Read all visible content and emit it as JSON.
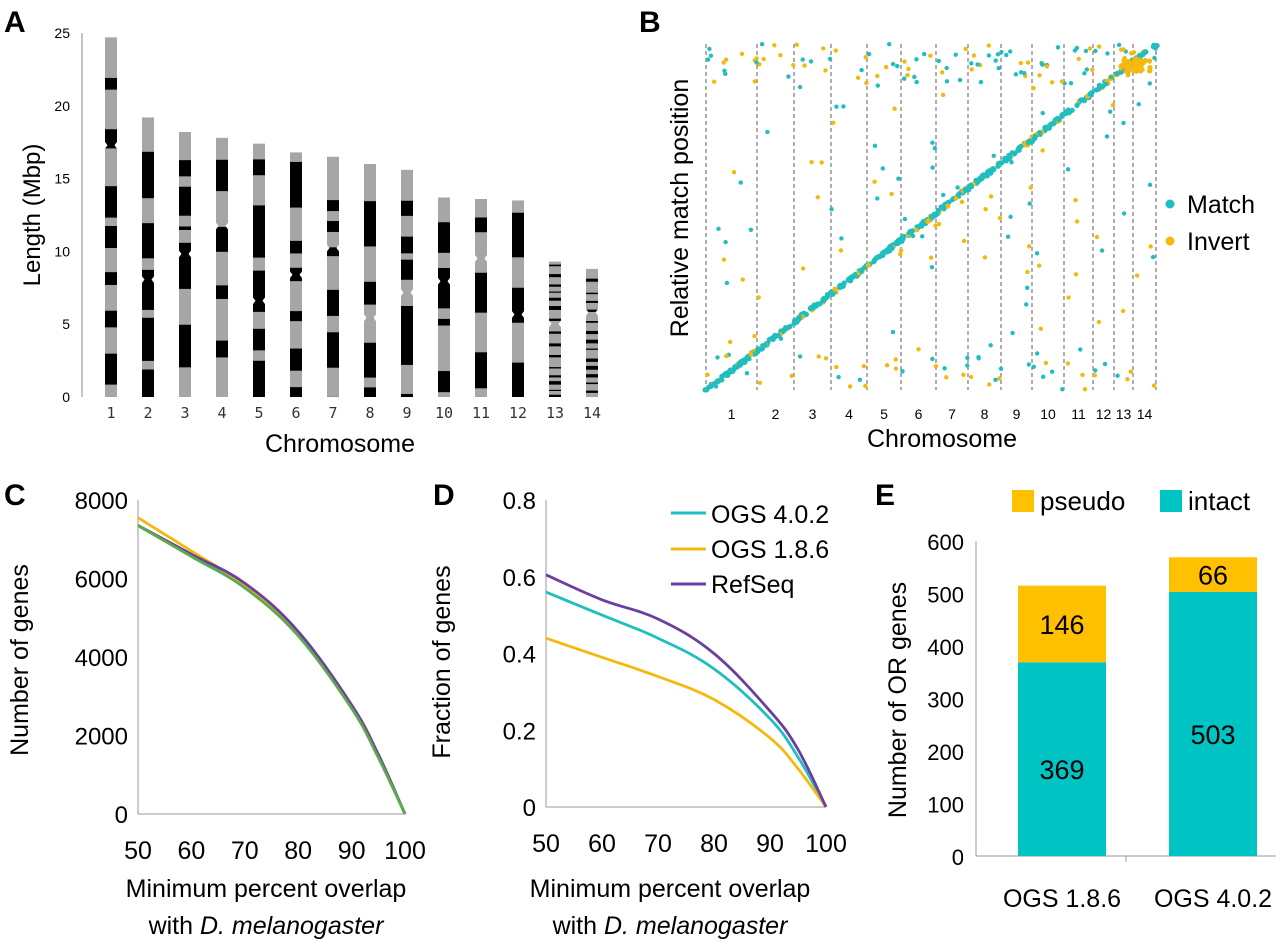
{
  "chart_data": [
    {
      "id": "A",
      "type": "bar",
      "panel_label": "A",
      "xlabel": "Chromosome",
      "ylabel": "Length (Mbp)",
      "ylim": [
        0,
        25
      ],
      "y_ticks": [
        "0",
        "5",
        "10",
        "15",
        "20",
        "25"
      ],
      "categories": [
        "1",
        "2",
        "3",
        "4",
        "5",
        "6",
        "7",
        "8",
        "9",
        "10",
        "11",
        "12",
        "13",
        "14"
      ],
      "values": [
        24.7,
        19.2,
        18.2,
        17.8,
        17.4,
        16.8,
        16.5,
        16.0,
        15.6,
        13.7,
        13.6,
        13.5,
        9.3,
        8.8
      ],
      "colors": {
        "gray": "#a6a6a6",
        "black": "#000000"
      }
    },
    {
      "id": "B",
      "type": "scatter",
      "panel_label": "B",
      "xlabel": "Chromosome",
      "ylabel": "Relative match position",
      "categories": [
        "1",
        "2",
        "3",
        "4",
        "5",
        "6",
        "7",
        "8",
        "9",
        "10",
        "11",
        "12",
        "13",
        "14"
      ],
      "series": [
        {
          "name": "Match",
          "color": "#1fbec0"
        },
        {
          "name": "Invert",
          "color": "#f5b90e"
        }
      ],
      "legend": "right"
    },
    {
      "id": "C",
      "type": "line",
      "panel_label": "C",
      "xlabel": "Minimum percent overlap",
      "xlabel_line2_prefix": "with ",
      "xlabel_line2_italic": "D. melanogaster",
      "ylabel": "Number of genes",
      "xlim": [
        50,
        100
      ],
      "ylim": [
        0,
        8000
      ],
      "x_ticks": [
        "50",
        "60",
        "70",
        "80",
        "90",
        "100"
      ],
      "y_ticks": [
        "0",
        "2000",
        "4000",
        "6000",
        "8000"
      ],
      "x": [
        50,
        60,
        70,
        80,
        90,
        95,
        100
      ],
      "series": [
        {
          "color": "#1fbec0",
          "values": [
            7350,
            6600,
            5800,
            4550,
            2700,
            1450,
            0
          ]
        },
        {
          "color": "#f5b90e",
          "values": [
            7550,
            6700,
            5820,
            4580,
            2720,
            1470,
            0
          ]
        },
        {
          "color": "#6b3fa0",
          "values": [
            7350,
            6620,
            5880,
            4650,
            2780,
            1520,
            0
          ]
        },
        {
          "color": "#5aab4c",
          "values": [
            7350,
            6560,
            5760,
            4540,
            2690,
            1440,
            0
          ]
        }
      ]
    },
    {
      "id": "D",
      "type": "line",
      "panel_label": "D",
      "xlabel": "Minimum percent overlap",
      "xlabel_line2_prefix": "with ",
      "xlabel_line2_italic": "D. melanogaster",
      "ylabel": "Fraction of genes",
      "xlim": [
        50,
        100
      ],
      "ylim": [
        0,
        0.8
      ],
      "x_ticks": [
        "50",
        "60",
        "70",
        "80",
        "90",
        "100"
      ],
      "y_ticks": [
        "0",
        "0.2",
        "0.4",
        "0.6",
        "0.8"
      ],
      "x": [
        50,
        60,
        70,
        80,
        90,
        95,
        100
      ],
      "series": [
        {
          "name": "OGS 4.0.2",
          "color": "#1fbec0",
          "values": [
            0.56,
            0.5,
            0.44,
            0.36,
            0.23,
            0.13,
            0.0
          ]
        },
        {
          "name": "OGS 1.8.6",
          "color": "#f5b90e",
          "values": [
            0.44,
            0.39,
            0.34,
            0.28,
            0.18,
            0.1,
            0.0
          ]
        },
        {
          "name": "RefSeq",
          "color": "#6b3fa0",
          "values": [
            0.605,
            0.54,
            0.49,
            0.4,
            0.25,
            0.15,
            0.0
          ]
        }
      ],
      "legend": "top-right"
    },
    {
      "id": "E",
      "type": "bar",
      "stacked": true,
      "panel_label": "E",
      "ylabel": "Number of OR genes",
      "ylim": [
        0,
        600
      ],
      "y_ticks": [
        "0",
        "100",
        "200",
        "300",
        "400",
        "500",
        "600"
      ],
      "categories": [
        "OGS 1.8.6",
        "OGS 4.0.2"
      ],
      "series": [
        {
          "name": "intact",
          "color": "#00c4c4",
          "values": [
            369,
            503
          ],
          "labels": [
            "369",
            "503"
          ]
        },
        {
          "name": "pseudo",
          "color": "#ffc000",
          "values": [
            146,
            66
          ],
          "labels": [
            "146",
            "66"
          ]
        }
      ],
      "legend": "top"
    }
  ]
}
